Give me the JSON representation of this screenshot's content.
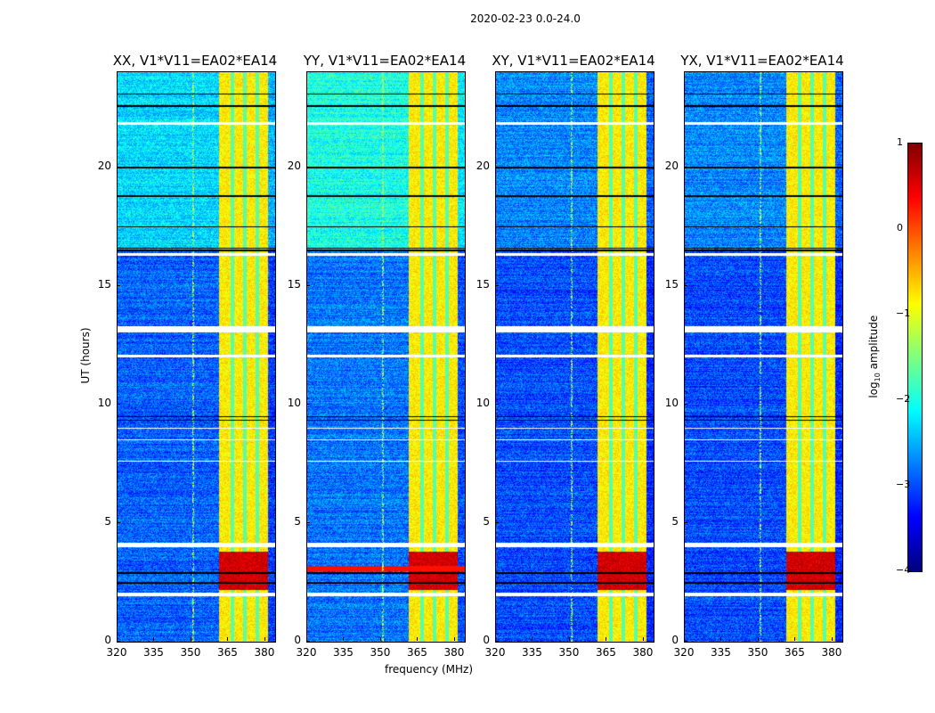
{
  "chart_data": {
    "type": "heatmap",
    "title": "2020-02-23 0.0-24.0",
    "xlabel": "frequency (MHz)",
    "ylabel": "UT (hours)",
    "xlim": [
      320,
      384
    ],
    "ylim": [
      0,
      24
    ],
    "xticks": [
      "320",
      "335",
      "350",
      "365",
      "380"
    ],
    "yticks": [
      "0",
      "5",
      "10",
      "15",
      "20"
    ],
    "colorbar": {
      "label_main": "log",
      "label_sub": "10",
      "label_rest": " amplitude",
      "range": [
        -4,
        1
      ],
      "ticks": [
        "1",
        "0",
        "−1",
        "−2",
        "−3",
        "−4"
      ],
      "colormap": "jet"
    },
    "panels": [
      {
        "title": "XX, V1*V11=EA02*EA14",
        "background": -2.9,
        "upper_background": -2.3,
        "rfi_line_3h": false
      },
      {
        "title": "YY, V1*V11=EA02*EA14",
        "background": -2.8,
        "upper_background": -2.0,
        "rfi_line_3h": true
      },
      {
        "title": "XY, V1*V11=EA02*EA14",
        "background": -3.0,
        "upper_background": -2.7,
        "rfi_line_3h": false
      },
      {
        "title": "YX, V1*V11=EA02*EA14",
        "background": -3.0,
        "upper_background": -2.7,
        "rfi_line_3h": false
      }
    ],
    "bright_band_mhz": [
      361,
      381
    ],
    "bright_band_level": -0.8,
    "strong_rfi_hours": [
      2.2,
      3.8
    ],
    "strong_rfi_level": 0.6,
    "flagged_hours": [
      [
        1.95,
        2.1
      ],
      [
        4.0,
        4.2
      ],
      [
        12.0,
        12.1
      ],
      [
        13.05,
        13.3
      ],
      [
        16.3,
        16.4
      ],
      [
        21.8,
        21.9
      ],
      [
        9.0,
        9.05
      ],
      [
        8.5,
        8.55
      ],
      [
        7.6,
        7.65
      ]
    ],
    "dark_rows_hours": [
      2.5,
      2.9,
      9.35,
      9.5,
      16.5,
      16.6,
      17.5,
      18.8,
      20.0,
      22.6,
      23.1
    ]
  }
}
